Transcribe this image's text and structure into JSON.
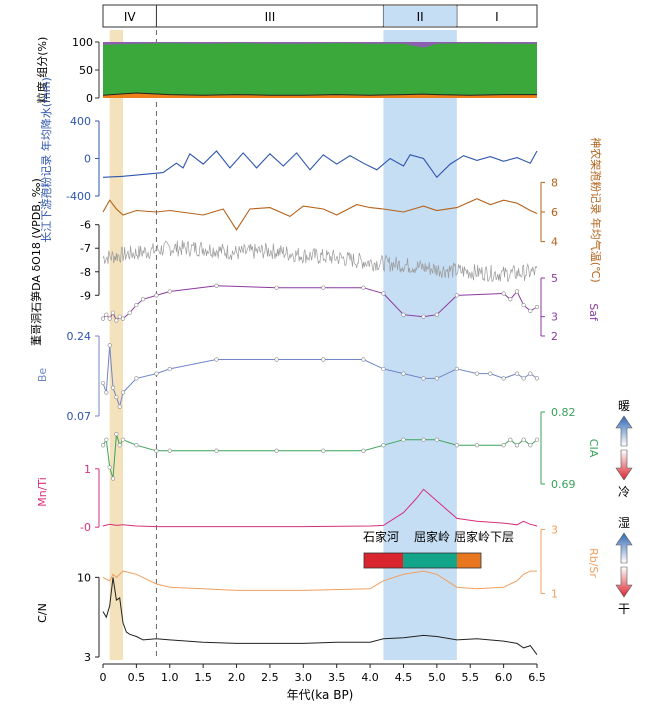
{
  "chart_data": {
    "type": "line",
    "x_axis": {
      "label": "年代(ka BP)",
      "range": [
        0,
        6.5
      ],
      "ticks": [
        "0",
        "0.5",
        "1.0",
        "1.5",
        "2.0",
        "2.5",
        "3.0",
        "3.5",
        "4.0",
        "4.5",
        "5.0",
        "5.5",
        "6.0",
        "6.5"
      ]
    },
    "stages": [
      {
        "label": "IV",
        "from": 0.0,
        "to": 0.8
      },
      {
        "label": "III",
        "from": 0.8,
        "to": 4.2
      },
      {
        "label": "II",
        "from": 4.2,
        "to": 5.3
      },
      {
        "label": "I",
        "from": 5.3,
        "to": 6.5
      }
    ],
    "highlight_bands": [
      {
        "from": 0.1,
        "to": 0.3,
        "color": "#f2ddb0"
      },
      {
        "from": 4.2,
        "to": 5.3,
        "color": "#bcd8f2"
      }
    ],
    "dashed_line_x": 0.8,
    "colors": {
      "grain": "#333333",
      "precip": "#2f55b0",
      "temp": "#b4621a",
      "d18o": "#777777",
      "saf": "#8b3aa0",
      "be": "#6f86c8",
      "cia": "#3aa35a",
      "mnti": "#d62f7b",
      "rbsr": "#f0a060",
      "cn": "#222222"
    },
    "panels": [
      {
        "id": "grain",
        "label": "粒度 组分(%)",
        "ticks": [
          "100",
          "50",
          "0"
        ],
        "range": [
          0,
          100
        ],
        "components": [
          "green",
          "orange",
          "purple"
        ],
        "x": [
          0,
          0.5,
          1,
          1.5,
          2,
          2.5,
          3,
          3.5,
          4,
          4.5,
          4.8,
          5,
          5.5,
          6,
          6.5
        ],
        "sand": [
          5,
          9,
          6,
          5,
          6,
          5,
          5,
          6,
          5,
          6,
          7,
          6,
          5,
          6,
          6
        ],
        "silt_top": [
          95,
          97,
          98,
          97,
          98,
          97,
          97,
          98,
          97,
          97,
          90,
          97,
          98,
          97,
          97
        ]
      },
      {
        "id": "precip",
        "label": "长江下游孢粉记录 年均降水(mm)",
        "ticks": [
          "400",
          "0",
          "-400"
        ],
        "range": [
          -400,
          400
        ],
        "x": [
          0,
          0.3,
          0.6,
          0.9,
          1.1,
          1.2,
          1.3,
          1.5,
          1.7,
          1.9,
          2.1,
          2.3,
          2.5,
          2.7,
          2.9,
          3.1,
          3.3,
          3.5,
          3.7,
          3.9,
          4.1,
          4.3,
          4.5,
          4.6,
          4.8,
          4.9,
          5.0,
          5.2,
          5.4,
          5.6,
          5.8,
          6.0,
          6.2,
          6.4,
          6.5
        ],
        "values": [
          -200,
          -190,
          -170,
          -150,
          -50,
          -100,
          50,
          -60,
          80,
          -100,
          60,
          -100,
          50,
          -80,
          60,
          -120,
          40,
          -60,
          30,
          -50,
          -120,
          0,
          -80,
          40,
          0,
          -100,
          -200,
          -60,
          30,
          -20,
          20,
          -30,
          10,
          -50,
          80
        ]
      },
      {
        "id": "temp",
        "label": "神农架孢粉记录 年均气温(℃)",
        "ticks": [
          "8",
          "6",
          "4"
        ],
        "range": [
          3.5,
          8.5
        ],
        "x": [
          0,
          0.1,
          0.2,
          0.3,
          0.5,
          0.8,
          1.0,
          1.5,
          1.8,
          2.0,
          2.2,
          2.5,
          2.8,
          3.0,
          3.3,
          3.5,
          3.8,
          4.0,
          4.2,
          4.5,
          4.8,
          5.0,
          5.3,
          5.6,
          5.8,
          6.0,
          6.2,
          6.4,
          6.5
        ],
        "values": [
          6.0,
          6.8,
          6.2,
          5.8,
          6.1,
          6.0,
          6.1,
          5.8,
          6.2,
          4.8,
          6.2,
          6.3,
          5.7,
          6.4,
          6.2,
          5.8,
          6.5,
          6.3,
          6.2,
          6.0,
          6.4,
          6.1,
          6.3,
          6.9,
          6.5,
          6.8,
          6.6,
          6.1,
          5.9
        ]
      },
      {
        "id": "d18o",
        "label": "董哥洞石笋DA δO18 (VPDB, ‰)",
        "ticks": [
          "-9",
          "-8",
          "-7",
          "-6"
        ],
        "range": [
          -9.2,
          -5.8
        ],
        "x": [
          0,
          0.5,
          1,
          1.5,
          2,
          2.5,
          3,
          3.5,
          4,
          4.5,
          5,
          5.5,
          6,
          6.5
        ],
        "values": [
          -7.4,
          -7.2,
          -7.0,
          -7.0,
          -7.2,
          -7.1,
          -7.3,
          -7.4,
          -7.6,
          -7.7,
          -7.9,
          -8.0,
          -8.1,
          -8.0
        ]
      },
      {
        "id": "saf",
        "label": "Saf",
        "ticks": [
          "5",
          "3",
          "2"
        ],
        "range": [
          2,
          5
        ],
        "x": [
          0,
          0.05,
          0.1,
          0.15,
          0.2,
          0.25,
          0.3,
          0.4,
          0.5,
          0.6,
          0.8,
          1.0,
          1.7,
          2.6,
          3.3,
          3.9,
          4.2,
          4.5,
          4.8,
          5.0,
          5.3,
          6.0,
          6.1,
          6.2,
          6.3,
          6.4,
          6.5
        ],
        "values": [
          2.9,
          3.1,
          2.9,
          3.2,
          2.8,
          3.0,
          2.9,
          3.2,
          3.6,
          3.9,
          4.1,
          4.3,
          4.6,
          4.5,
          4.5,
          4.5,
          4.2,
          3.1,
          3.0,
          3.1,
          4.1,
          4.2,
          3.9,
          4.3,
          3.6,
          3.3,
          3.5
        ]
      },
      {
        "id": "be",
        "label": "Be",
        "ticks": [
          "0.24",
          "0.07"
        ],
        "range": [
          0.07,
          0.24
        ],
        "x": [
          0,
          0.05,
          0.1,
          0.15,
          0.2,
          0.25,
          0.3,
          0.5,
          0.8,
          1.0,
          1.7,
          2.6,
          3.3,
          3.9,
          4.2,
          4.5,
          4.8,
          5.0,
          5.3,
          5.6,
          5.8,
          6.0,
          6.2,
          6.3,
          6.4,
          6.5
        ],
        "values": [
          0.14,
          0.12,
          0.22,
          0.13,
          0.11,
          0.09,
          0.12,
          0.15,
          0.16,
          0.17,
          0.19,
          0.19,
          0.19,
          0.19,
          0.17,
          0.16,
          0.15,
          0.15,
          0.17,
          0.16,
          0.16,
          0.15,
          0.16,
          0.15,
          0.16,
          0.15
        ]
      },
      {
        "id": "cia",
        "label": "CIA",
        "ticks": [
          "0.82",
          "0.69"
        ],
        "range": [
          0.69,
          0.82
        ],
        "x": [
          0,
          0.05,
          0.1,
          0.15,
          0.2,
          0.25,
          0.3,
          0.5,
          0.8,
          1.0,
          1.7,
          2.6,
          3.3,
          3.9,
          4.2,
          4.5,
          4.8,
          5.0,
          5.3,
          5.6,
          6.0,
          6.1,
          6.2,
          6.3,
          6.4,
          6.5
        ],
        "values": [
          0.76,
          0.77,
          0.72,
          0.7,
          0.78,
          0.76,
          0.77,
          0.76,
          0.75,
          0.75,
          0.75,
          0.75,
          0.75,
          0.75,
          0.76,
          0.77,
          0.77,
          0.77,
          0.76,
          0.76,
          0.76,
          0.77,
          0.76,
          0.77,
          0.76,
          0.77
        ]
      },
      {
        "id": "mnti",
        "label": "Mn/Ti",
        "ticks": [
          "1",
          "-0"
        ],
        "range": [
          -0.1,
          1.1
        ],
        "x": [
          0,
          0.1,
          0.2,
          0.3,
          0.5,
          0.8,
          1.0,
          2.0,
          3.0,
          4.0,
          4.2,
          4.5,
          4.7,
          4.8,
          4.9,
          5.1,
          5.3,
          5.6,
          6.0,
          6.2,
          6.3,
          6.4,
          6.5
        ],
        "values": [
          0.02,
          0.05,
          0.03,
          0.04,
          0.02,
          0.01,
          0.01,
          0.01,
          0.01,
          0.02,
          0.03,
          0.25,
          0.5,
          0.65,
          0.55,
          0.35,
          0.15,
          0.1,
          0.07,
          0.04,
          0.1,
          0.05,
          0.02
        ]
      },
      {
        "id": "rbsr",
        "label": "Rb/Sr",
        "ticks": [
          "3",
          "1"
        ],
        "range": [
          0.8,
          3.2
        ],
        "x": [
          0,
          0.1,
          0.15,
          0.2,
          0.3,
          0.5,
          0.8,
          1.0,
          1.5,
          2.0,
          3.0,
          4.0,
          4.2,
          4.5,
          4.8,
          5.0,
          5.3,
          5.6,
          6.0,
          6.2,
          6.3,
          6.4,
          6.5
        ],
        "values": [
          1.5,
          1.4,
          1.6,
          1.5,
          1.7,
          1.6,
          1.3,
          1.2,
          1.15,
          1.1,
          1.1,
          1.15,
          1.4,
          1.6,
          1.7,
          1.6,
          1.2,
          1.15,
          1.2,
          1.4,
          1.6,
          1.7,
          1.7
        ]
      },
      {
        "id": "cn",
        "label": "C/N",
        "ticks": [
          "10",
          "3"
        ],
        "range": [
          3,
          11
        ],
        "x": [
          0,
          0.05,
          0.1,
          0.15,
          0.2,
          0.25,
          0.3,
          0.35,
          0.4,
          0.5,
          0.6,
          0.8,
          1.0,
          1.5,
          2.0,
          2.5,
          3.0,
          3.5,
          4.0,
          4.2,
          4.5,
          4.8,
          5.0,
          5.3,
          5.6,
          6.0,
          6.2,
          6.3,
          6.4,
          6.5
        ],
        "values": [
          7,
          6.5,
          7.5,
          10,
          8,
          8.2,
          6,
          5.2,
          5,
          4.8,
          4.5,
          4.6,
          4.5,
          4.3,
          4.2,
          4.2,
          4.2,
          4.3,
          4.3,
          4.6,
          4.7,
          4.9,
          4.8,
          4.5,
          4.6,
          4.4,
          4.2,
          3.8,
          4.0,
          3.2
        ]
      }
    ],
    "culture_bar": {
      "labels": [
        "石家河",
        "屈家岭",
        "屈家岭下层"
      ],
      "colors": [
        "#d9252e",
        "#13a58a",
        "#e8761e"
      ]
    },
    "arrows": [
      {
        "top": "暖",
        "bottom": "冷"
      },
      {
        "top": "湿",
        "bottom": "干"
      }
    ]
  }
}
